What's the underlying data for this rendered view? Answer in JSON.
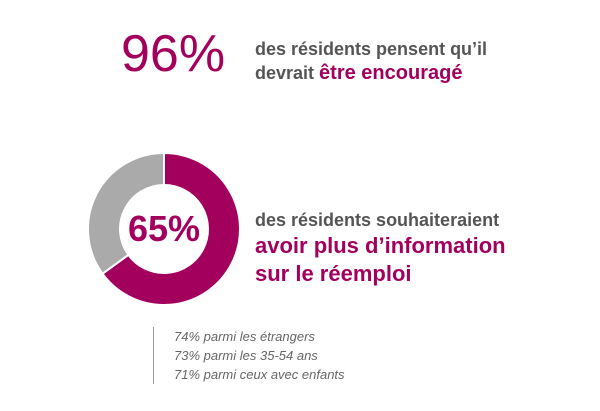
{
  "stat1": {
    "value": "96%",
    "text_line1": "des résidents pensent qu’il",
    "text_line2_plain": "devrait",
    "text_line2_highlight": "être encouragé"
  },
  "stat2": {
    "value": "65%",
    "text_line1": "des résidents souhaiteraient",
    "text_line2": "avoir plus d’information",
    "text_line3": "sur le réemploi"
  },
  "notes": [
    "74% parmi les étrangers",
    "73% parmi les 35-54 ans",
    "71% parmi ceux avec enfants"
  ],
  "colors": {
    "accent": "#a3005e",
    "remainder": "#aaaaaa",
    "text": "#555555"
  },
  "chart_data": {
    "type": "pie",
    "categories": [
      "",
      ""
    ],
    "values": [
      65,
      35
    ],
    "colors": [
      "#a3005e",
      "#aaaaaa"
    ]
  }
}
